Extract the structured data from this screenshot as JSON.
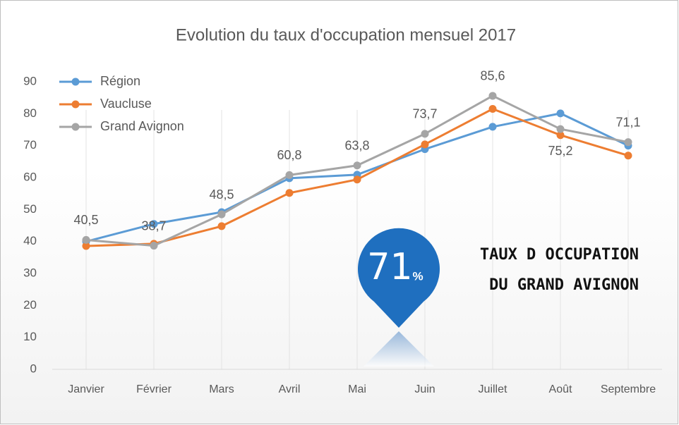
{
  "chart_data": {
    "type": "line",
    "title": "Evolution  du taux d'occupation  mensuel  2017",
    "categories": [
      "Janvier",
      "Février",
      "Mars",
      "Avril",
      "Mai",
      "Juin",
      "Juillet",
      "Août",
      "Septembre"
    ],
    "series": [
      {
        "name": "Région",
        "color": "#5b9bd5",
        "values": [
          40,
          45.5,
          49.2,
          59.8,
          60.9,
          68.9,
          75.9,
          80.1,
          70
        ]
      },
      {
        "name": "Vaucluse",
        "color": "#ed7d31",
        "values": [
          38.6,
          39.3,
          44.8,
          55.2,
          59.4,
          70.4,
          81.5,
          73.3,
          66.9
        ]
      },
      {
        "name": "Grand Avignon",
        "color": "#a5a5a5",
        "values": [
          40.5,
          38.7,
          48.5,
          60.8,
          63.8,
          73.7,
          85.6,
          75.2,
          71.1
        ],
        "value_labels": [
          "40,5",
          "38,7",
          "48,5",
          "60,8",
          "63,8",
          "73,7",
          "85,6",
          "75,2",
          "71,1"
        ]
      }
    ],
    "ylim": [
      0,
      90
    ],
    "yticks": [
      0,
      10,
      20,
      30,
      40,
      50,
      60,
      70,
      80,
      90
    ],
    "grid": true,
    "legend": "upper left",
    "annotations": [
      "71",
      "%",
      "TAUX D OCCUPATION",
      "DU GRAND AVIGNON"
    ]
  }
}
